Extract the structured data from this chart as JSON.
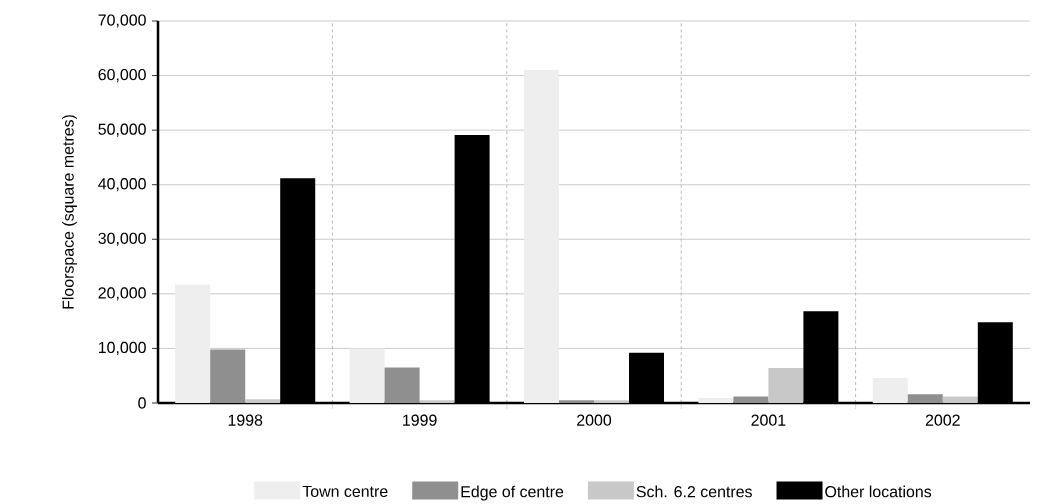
{
  "chart_data": {
    "type": "bar",
    "ylabel": "Floorspace (square metres)",
    "categories": [
      "1998",
      "1999",
      "2000",
      "2001",
      "2002"
    ],
    "series": [
      {
        "name": "Town centre",
        "color": "#eeeeee",
        "values": [
          21700,
          10000,
          61000,
          900,
          4600
        ]
      },
      {
        "name": "Edge of centre",
        "color": "#8f8f8f",
        "values": [
          9800,
          6500,
          500,
          1200,
          1600
        ]
      },
      {
        "name": "Sch. 6.2 centres",
        "color": "#c8c8c8",
        "values": [
          700,
          500,
          500,
          6400,
          1200
        ]
      },
      {
        "name": "Other locations",
        "color": "#000000",
        "values": [
          41200,
          49100,
          9200,
          16800,
          14800
        ]
      }
    ],
    "ylim": [
      0,
      70000
    ],
    "yticks": [
      0,
      {
        "value": 10000,
        "label": "10,000"
      },
      {
        "value": 20000,
        "label": "20,000"
      },
      {
        "value": 30000,
        "label": "30,000"
      },
      {
        "value": 40000,
        "label": "40,000"
      },
      {
        "value": 50000,
        "label": "50,000"
      },
      {
        "value": 60000,
        "label": "60,000"
      },
      {
        "value": 70000,
        "label": "70,000"
      }
    ],
    "grid": "y",
    "legend": "bottom"
  }
}
